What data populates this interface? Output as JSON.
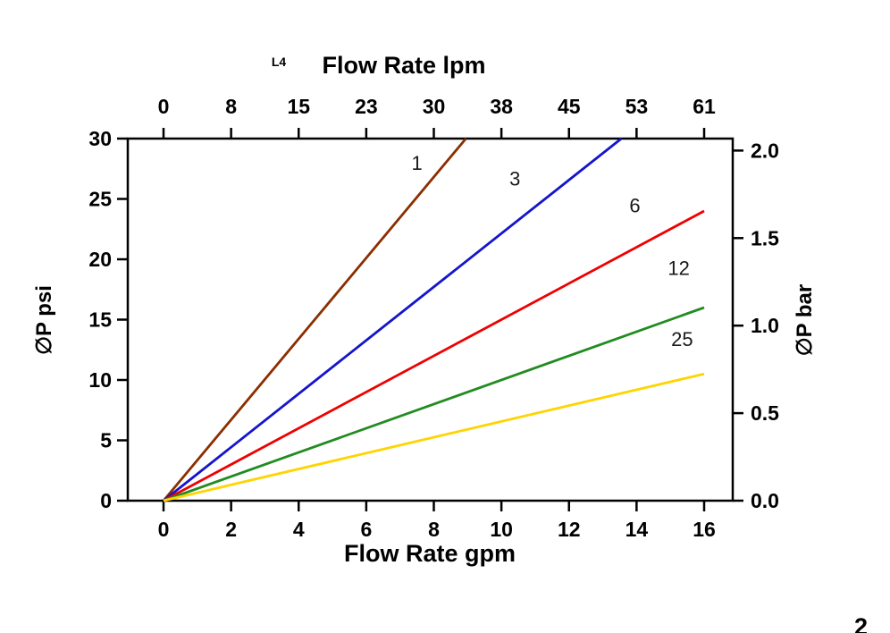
{
  "page": {
    "background": "#ffffff",
    "corner_mark": "2"
  },
  "chart_data": {
    "type": "line",
    "top_axis": {
      "title": "Flow Rate lpm",
      "annotation": "L4",
      "tick_labels": [
        "0",
        "8",
        "15",
        "23",
        "30",
        "38",
        "45",
        "53",
        "61"
      ]
    },
    "bottom_axis": {
      "title": "Flow Rate gpm",
      "tick_labels": [
        "0",
        "2",
        "4",
        "6",
        "8",
        "10",
        "12",
        "14",
        "16"
      ],
      "tick_values": [
        0,
        2,
        4,
        6,
        8,
        10,
        12,
        14,
        16
      ]
    },
    "left_axis": {
      "title": "∅P psi",
      "tick_labels": [
        "0",
        "5",
        "10",
        "15",
        "20",
        "25",
        "30"
      ],
      "tick_values": [
        0,
        5,
        10,
        15,
        20,
        25,
        30
      ]
    },
    "right_axis": {
      "title": "∅P bar",
      "tick_labels": [
        "0.0",
        "0.5",
        "1.0",
        "1.5",
        "2.0"
      ],
      "tick_values": [
        0,
        0.5,
        1,
        1.5,
        2
      ],
      "psi_per_bar": 14.5038
    },
    "xlim": [
      0,
      16
    ],
    "ylim": [
      0,
      30
    ],
    "grid": false,
    "axis_color": "#000000",
    "series": [
      {
        "name": "1",
        "color": "#8B2E00",
        "points": [
          [
            0,
            0
          ],
          [
            8.95,
            30
          ]
        ],
        "label": {
          "text": "1",
          "x": 7.5,
          "y": 27.4
        }
      },
      {
        "name": "3",
        "color": "#1414CC",
        "points": [
          [
            0,
            0
          ],
          [
            13.55,
            30
          ]
        ],
        "label": {
          "text": "3",
          "x": 10.4,
          "y": 26.1
        }
      },
      {
        "name": "6",
        "color": "#EE0000",
        "points": [
          [
            0,
            0
          ],
          [
            16,
            24
          ]
        ],
        "label": {
          "text": "6",
          "x": 13.95,
          "y": 23.9
        }
      },
      {
        "name": "12",
        "color": "#228B22",
        "points": [
          [
            0,
            0
          ],
          [
            16,
            16
          ]
        ],
        "label": {
          "text": "12",
          "x": 15.25,
          "y": 18.7
        }
      },
      {
        "name": "25",
        "color": "#FFD400",
        "points": [
          [
            0,
            0
          ],
          [
            16,
            10.5
          ]
        ],
        "label": {
          "text": "25",
          "x": 15.35,
          "y": 12.8
        }
      }
    ]
  }
}
